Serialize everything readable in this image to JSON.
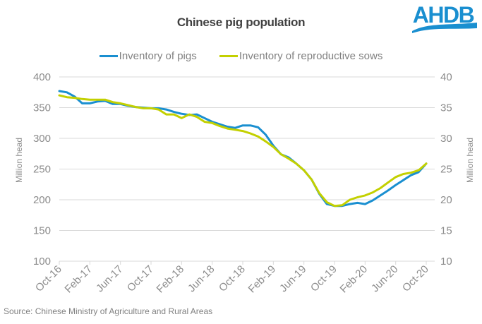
{
  "header": {
    "title": "Chinese pig population",
    "logo_text": "AHDB",
    "logo_color": "#1a8fd0"
  },
  "legend": [
    {
      "name": "Inventory of pigs",
      "color": "#1a8fd0"
    },
    {
      "name": "Inventory of reproductive sows",
      "color": "#c3d000"
    }
  ],
  "source": "Source: Chinese Ministry of Agriculture and Rural Areas",
  "chart_data": {
    "type": "line",
    "title": "Chinese pig population",
    "x": [
      "Oct-16",
      "Nov-16",
      "Dec-16",
      "Jan-17",
      "Feb-17",
      "Mar-17",
      "Apr-17",
      "May-17",
      "Jun-17",
      "Jul-17",
      "Aug-17",
      "Sep-17",
      "Oct-17",
      "Nov-17",
      "Dec-17",
      "Jan-18",
      "Feb-18",
      "Mar-18",
      "Apr-18",
      "May-18",
      "Jun-18",
      "Jul-18",
      "Aug-18",
      "Sep-18",
      "Oct-18",
      "Nov-18",
      "Dec-18",
      "Jan-19",
      "Feb-19",
      "Mar-19",
      "Apr-19",
      "May-19",
      "Jun-19",
      "Jul-19",
      "Aug-19",
      "Sep-19",
      "Oct-19",
      "Nov-19",
      "Dec-19",
      "Jan-20",
      "Feb-20",
      "Mar-20",
      "Apr-20",
      "May-20",
      "Jun-20",
      "Jul-20",
      "Aug-20",
      "Sep-20",
      "Oct-20"
    ],
    "tick_labels": [
      "Oct-16",
      "Feb-17",
      "Jun-17",
      "Oct-17",
      "Feb-18",
      "Jun-18",
      "Oct-18",
      "Feb-19",
      "Jun-19",
      "Oct-19",
      "Feb-20",
      "Jun-20",
      "Oct-20"
    ],
    "series": [
      {
        "name": "Inventory of pigs",
        "axis": "left",
        "color": "#1a8fd0",
        "values": [
          377,
          375,
          368,
          357,
          357,
          360,
          361,
          356,
          356,
          353,
          351,
          350,
          349,
          349,
          347,
          343,
          340,
          338,
          339,
          333,
          327,
          323,
          319,
          317,
          321,
          321,
          318,
          306,
          288,
          274,
          269,
          259,
          248,
          233,
          210,
          193,
          190,
          190,
          193,
          195,
          193,
          199,
          207,
          215,
          224,
          232,
          240,
          245,
          259
        ]
      },
      {
        "name": "Inventory of reproductive sows",
        "axis": "right",
        "color": "#c3d000",
        "values": [
          37.0,
          36.7,
          36.6,
          36.4,
          36.3,
          36.3,
          36.3,
          35.9,
          35.7,
          35.4,
          35.1,
          34.9,
          34.9,
          34.7,
          33.9,
          33.9,
          33.3,
          33.9,
          33.5,
          32.7,
          32.5,
          32.0,
          31.6,
          31.4,
          31.2,
          30.8,
          30.3,
          29.5,
          28.6,
          27.4,
          26.7,
          25.9,
          24.8,
          23.3,
          21.1,
          19.6,
          19.0,
          19.1,
          20.0,
          20.4,
          20.7,
          21.2,
          21.9,
          22.8,
          23.7,
          24.2,
          24.4,
          24.8,
          25.9
        ]
      }
    ],
    "xlabel": "",
    "ylabel": "Million head",
    "ylabel_right": "Million head",
    "ylim": [
      100,
      400
    ],
    "yticks": [
      100,
      150,
      200,
      250,
      300,
      350,
      400
    ],
    "ylim_right": [
      10,
      40
    ],
    "yticks_right": [
      10,
      15,
      20,
      25,
      30,
      35,
      40
    ],
    "grid": true,
    "legend_position": "top-center"
  }
}
